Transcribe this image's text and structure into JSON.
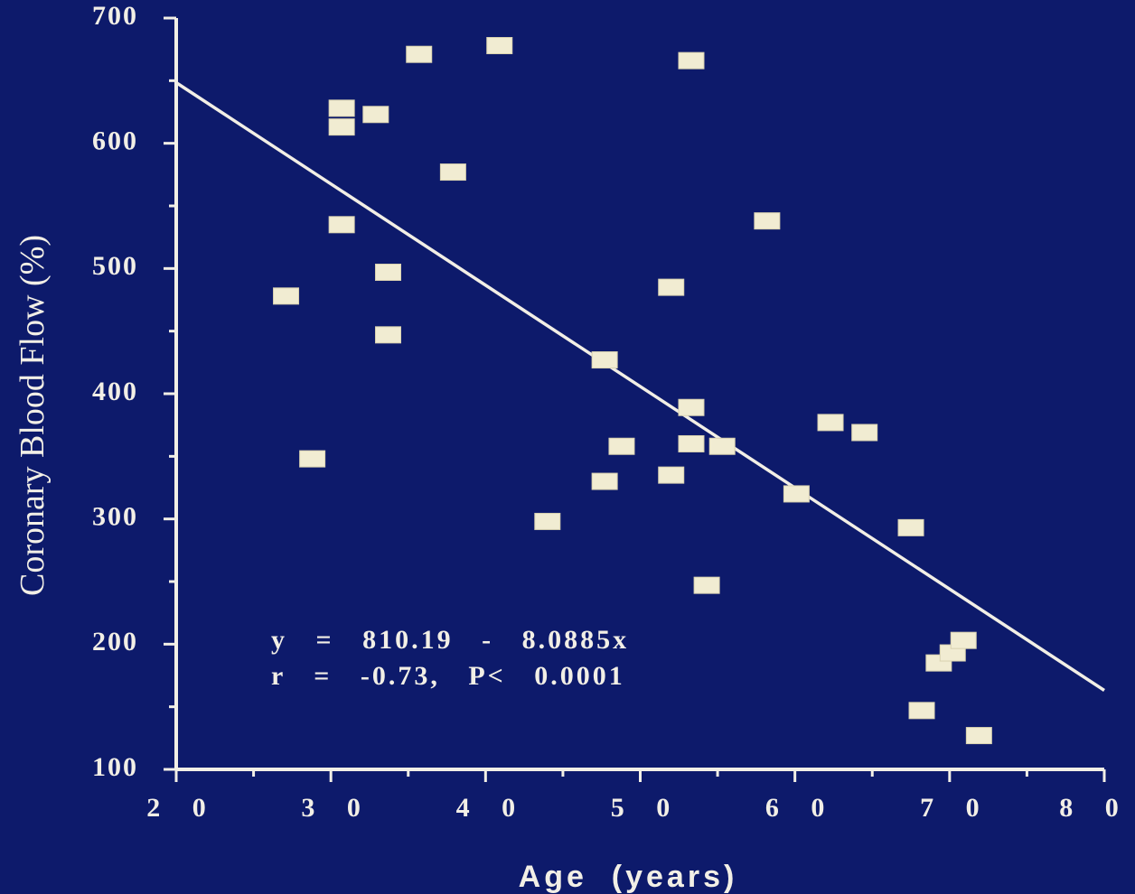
{
  "chart_data": {
    "type": "scatter",
    "title": "",
    "xlabel": "Age  (years)",
    "ylabel": "Coronary Blood Flow (%)",
    "xlim": [
      20,
      80
    ],
    "ylim": [
      100,
      700
    ],
    "x_ticks": [
      "2 0",
      "3 0",
      "4 0",
      "5 0",
      "6 0",
      "7 0",
      "8 0"
    ],
    "y_ticks": [
      "100",
      "200",
      "300",
      "400",
      "500",
      "600",
      "700"
    ],
    "grid": false,
    "series": [
      {
        "points": [
          [
            27.1,
            478
          ],
          [
            28.8,
            348
          ],
          [
            30.7,
            628
          ],
          [
            30.7,
            613
          ],
          [
            30.7,
            535
          ],
          [
            32.9,
            623
          ],
          [
            33.7,
            497
          ],
          [
            33.7,
            447
          ],
          [
            35.7,
            671
          ],
          [
            37.9,
            577
          ],
          [
            40.9,
            678
          ],
          [
            44.0,
            298
          ],
          [
            47.7,
            427
          ],
          [
            47.7,
            330
          ],
          [
            48.8,
            358
          ],
          [
            52.0,
            485
          ],
          [
            52.0,
            335
          ],
          [
            53.3,
            666
          ],
          [
            53.3,
            389
          ],
          [
            53.3,
            360
          ],
          [
            54.3,
            247
          ],
          [
            55.3,
            358
          ],
          [
            58.2,
            538
          ],
          [
            60.1,
            320
          ],
          [
            62.3,
            377
          ],
          [
            64.5,
            369
          ],
          [
            67.5,
            293
          ],
          [
            68.2,
            147
          ],
          [
            69.3,
            185
          ],
          [
            70.2,
            193
          ],
          [
            70.9,
            203
          ],
          [
            71.9,
            127
          ]
        ]
      }
    ],
    "trendline": {
      "intercept": 810.19,
      "slope": -8.0885,
      "x_range": [
        20,
        80
      ]
    },
    "annotations": [
      "y   =   810.19   -   8.0885x",
      "r   =   -0.73,   P<   0.0001"
    ],
    "colors": {
      "background": "#0d1a6b",
      "foreground": "#f2efe6",
      "marker": "#f1ecd2"
    }
  }
}
